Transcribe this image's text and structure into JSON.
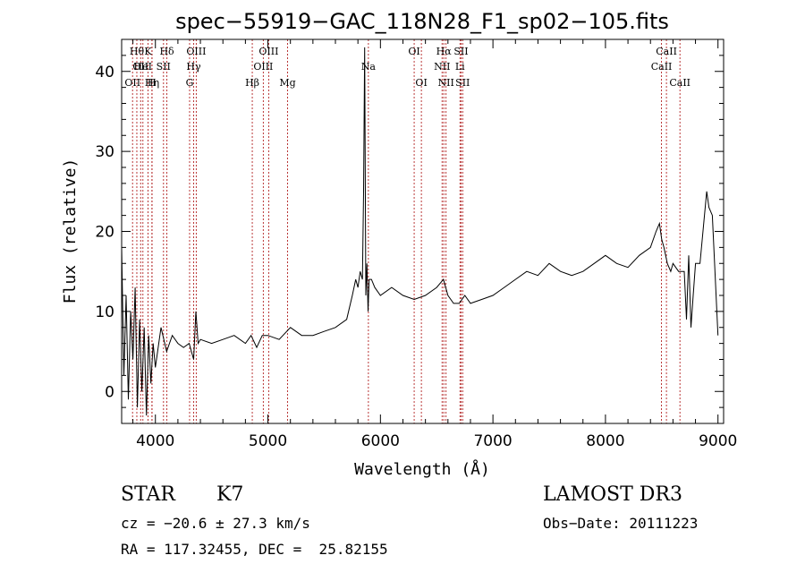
{
  "chart_data": {
    "type": "line",
    "title": "spec−55919−GAC_118N28_F1_sp02−105.fits",
    "xlabel": "Wavelength (Å)",
    "ylabel": "Flux (relative)",
    "xlim": [
      3700,
      9050
    ],
    "ylim": [
      -4,
      44
    ],
    "xticks": [
      4000,
      5000,
      6000,
      7000,
      8000,
      9000
    ],
    "yticks": [
      0,
      10,
      20,
      30,
      40
    ],
    "xtick_labels": [
      "4000",
      "5000",
      "6000",
      "7000",
      "8000",
      "9000"
    ],
    "ytick_labels": [
      "0",
      "10",
      "20",
      "30",
      "40"
    ],
    "series": [
      {
        "name": "flux",
        "x": [
          3700,
          3720,
          3740,
          3760,
          3780,
          3800,
          3820,
          3840,
          3860,
          3880,
          3900,
          3920,
          3940,
          3960,
          3980,
          4000,
          4050,
          4100,
          4150,
          4200,
          4250,
          4300,
          4340,
          4360,
          4380,
          4400,
          4500,
          4600,
          4700,
          4800,
          4850,
          4900,
          4950,
          5000,
          5100,
          5200,
          5300,
          5400,
          5500,
          5600,
          5700,
          5750,
          5780,
          5800,
          5820,
          5840,
          5850,
          5860,
          5870,
          5880,
          5890,
          5900,
          5920,
          5950,
          6000,
          6100,
          6200,
          6300,
          6400,
          6500,
          6560,
          6600,
          6650,
          6700,
          6750,
          6800,
          6900,
          7000,
          7100,
          7200,
          7300,
          7400,
          7500,
          7600,
          7700,
          7800,
          7900,
          8000,
          8100,
          8200,
          8300,
          8400,
          8450,
          8480,
          8500,
          8520,
          8550,
          8580,
          8600,
          8650,
          8700,
          8720,
          8740,
          8760,
          8780,
          8800,
          8840,
          8880,
          8900,
          8920,
          8950,
          9000
        ],
        "y": [
          18,
          2,
          12,
          -1,
          10,
          4,
          13,
          -2,
          9,
          0,
          8,
          -3,
          7,
          1,
          6,
          3,
          8,
          5,
          7,
          6,
          5.5,
          6,
          4,
          10,
          6,
          6.5,
          6,
          6.5,
          7,
          6,
          7,
          5.5,
          7,
          7,
          6.5,
          8,
          7,
          7,
          7.5,
          8,
          9,
          12,
          14,
          13,
          15,
          14,
          25,
          43,
          12,
          16,
          10,
          14,
          14,
          13,
          12,
          13,
          12,
          11.5,
          12,
          13,
          14,
          12,
          11,
          11,
          12,
          11,
          11.5,
          12,
          13,
          14,
          15,
          14.5,
          16,
          15,
          14.5,
          15,
          16,
          17,
          16,
          15.5,
          17,
          18,
          20,
          21,
          19,
          18,
          16,
          15,
          16,
          15,
          15,
          9,
          17,
          8,
          12,
          16,
          16,
          22,
          25,
          23,
          22,
          7
        ]
      }
    ],
    "lines": [
      {
        "wave": 3797,
        "label": "OII",
        "row": 3
      },
      {
        "wave": 3835,
        "label": "Hθ",
        "row": 1
      },
      {
        "wave": 3869,
        "label": "OII",
        "row": 2
      },
      {
        "wave": 3889,
        "label": "HeI",
        "row": 2
      },
      {
        "wave": 3934,
        "label": "K",
        "row": 1
      },
      {
        "wave": 3970,
        "label": "Hη",
        "row": 3
      },
      {
        "wave": 3969,
        "label": "H",
        "row": 3
      },
      {
        "wave": 4072,
        "label": "SII",
        "row": 2
      },
      {
        "wave": 4102,
        "label": "Hδ",
        "row": 1
      },
      {
        "wave": 4304,
        "label": "G",
        "row": 3
      },
      {
        "wave": 4340,
        "label": "Hγ",
        "row": 2
      },
      {
        "wave": 4363,
        "label": "OIII",
        "row": 1
      },
      {
        "wave": 4861,
        "label": "Hβ",
        "row": 3
      },
      {
        "wave": 4959,
        "label": "OIII",
        "row": 2
      },
      {
        "wave": 5007,
        "label": "OIII",
        "row": 1
      },
      {
        "wave": 5175,
        "label": "Mg",
        "row": 3
      },
      {
        "wave": 5893,
        "label": "Na",
        "row": 2
      },
      {
        "wave": 6300,
        "label": "OI",
        "row": 1
      },
      {
        "wave": 6364,
        "label": "OI",
        "row": 3
      },
      {
        "wave": 6548,
        "label": "NII",
        "row": 2
      },
      {
        "wave": 6563,
        "label": "Hα",
        "row": 1
      },
      {
        "wave": 6583,
        "label": "NII",
        "row": 3
      },
      {
        "wave": 6707,
        "label": "Li",
        "row": 2
      },
      {
        "wave": 6717,
        "label": "SII",
        "row": 1
      },
      {
        "wave": 6731,
        "label": "SII",
        "row": 3
      },
      {
        "wave": 8498,
        "label": "CaII",
        "row": 2
      },
      {
        "wave": 8542,
        "label": "CaII",
        "row": 1
      },
      {
        "wave": 8662,
        "label": "CaII",
        "row": 3
      }
    ]
  },
  "info": {
    "class": "STAR",
    "subclass": "K7",
    "survey": "LAMOST DR3",
    "cz": "cz = −20.6 ± 27.3 km/s",
    "obs_date": "Obs−Date: 20111223",
    "coords": "RA = 117.32455, DEC =  25.82155"
  }
}
